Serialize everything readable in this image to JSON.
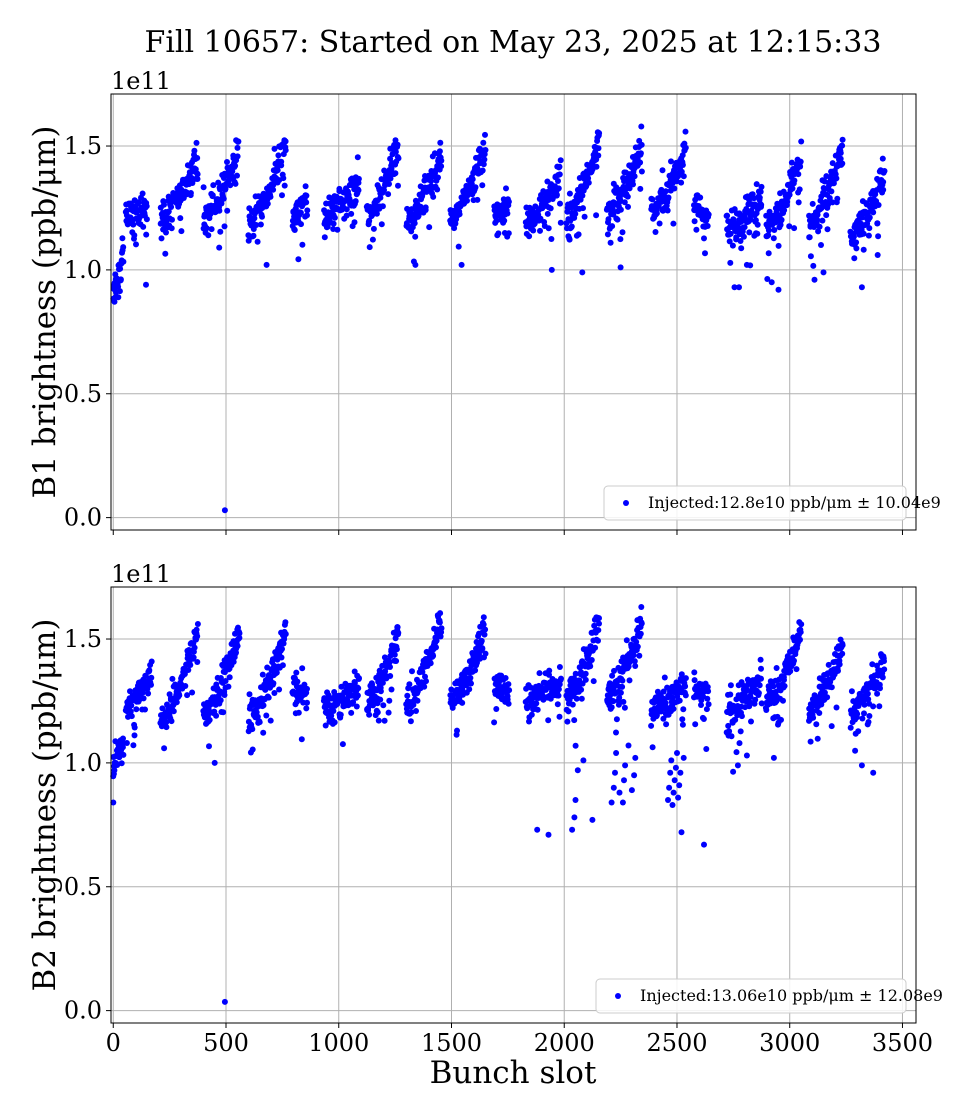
{
  "figure": {
    "title": "Fill 10657: Started on May 23, 2025 at 12:15:33",
    "shared_xlabel": "Bunch slot"
  },
  "colors": {
    "marker": "#0000ff",
    "grid": "#b0b0b0",
    "axes": "#000000",
    "legend_border": "#cccccc"
  },
  "chart_data": [
    {
      "type": "scatter",
      "title": "",
      "xlabel": "Bunch slot",
      "ylabel": "B1 brightness (ppb/μm)",
      "y_sci_multiplier": "1e11",
      "xlim": [
        -10,
        3560
      ],
      "ylim": [
        -0.05,
        1.71
      ],
      "x_ticks": [
        0,
        500,
        1000,
        1500,
        2000,
        2500,
        3000,
        3500
      ],
      "x_tick_labels": [
        "0",
        "500",
        "1000",
        "1500",
        "2000",
        "2500",
        "3000",
        "3500"
      ],
      "x_tick_labels_shown": false,
      "y_ticks": [
        0.0,
        0.5,
        1.0,
        1.5
      ],
      "y_tick_labels": [
        "0.0",
        "0.5",
        "1.0",
        "1.5"
      ],
      "grid": true,
      "legend_position": "lower-right",
      "series": [
        {
          "name": "Injected:12.8e10 ppb/μm ± 10.04e9",
          "marker": "circle",
          "trains": [
            {
              "x": [
                0,
                45
              ],
              "y": [
                0.92,
                1.08
              ]
            },
            {
              "x": [
                55,
                150
              ],
              "y": [
                1.21,
                1.27
              ]
            },
            {
              "x": [
                210,
                375
              ],
              "y": [
                1.2,
                1.46
              ]
            },
            {
              "x": [
                400,
                555
              ],
              "y": [
                1.2,
                1.47
              ]
            },
            {
              "x": [
                600,
                765
              ],
              "y": [
                1.18,
                1.5
              ]
            },
            {
              "x": [
                795,
                860
              ],
              "y": [
                1.21,
                1.26
              ]
            },
            {
              "x": [
                935,
                1090
              ],
              "y": [
                1.22,
                1.35
              ]
            },
            {
              "x": [
                1125,
                1265
              ],
              "y": [
                1.21,
                1.5
              ]
            },
            {
              "x": [
                1300,
                1455
              ],
              "y": [
                1.2,
                1.46
              ]
            },
            {
              "x": [
                1495,
                1650
              ],
              "y": [
                1.19,
                1.5
              ]
            },
            {
              "x": [
                1690,
                1755
              ],
              "y": [
                1.21,
                1.26
              ]
            },
            {
              "x": [
                1830,
                1985
              ],
              "y": [
                1.19,
                1.37
              ]
            },
            {
              "x": [
                2010,
                2155
              ],
              "y": [
                1.21,
                1.5
              ]
            },
            {
              "x": [
                2190,
                2345
              ],
              "y": [
                1.23,
                1.49
              ]
            },
            {
              "x": [
                2385,
                2540
              ],
              "y": [
                1.23,
                1.49
              ]
            },
            {
              "x": [
                2575,
                2640
              ],
              "y": [
                1.25,
                1.2
              ]
            },
            {
              "x": [
                2720,
                2875
              ],
              "y": [
                1.16,
                1.3
              ]
            },
            {
              "x": [
                2895,
                3050
              ],
              "y": [
                1.16,
                1.43
              ]
            },
            {
              "x": [
                3085,
                3235
              ],
              "y": [
                1.18,
                1.5
              ]
            },
            {
              "x": [
                3270,
                3420
              ],
              "y": [
                1.13,
                1.38
              ]
            }
          ],
          "outliers": [
            {
              "x": 10,
              "y": 0.89
            },
            {
              "x": 20,
              "y": 0.95
            },
            {
              "x": 145,
              "y": 0.94
            },
            {
              "x": 495,
              "y": 0.03
            },
            {
              "x": 470,
              "y": 1.09
            },
            {
              "x": 680,
              "y": 1.02
            },
            {
              "x": 1340,
              "y": 1.02
            },
            {
              "x": 1545,
              "y": 1.02
            },
            {
              "x": 1945,
              "y": 1.0
            },
            {
              "x": 2080,
              "y": 0.99
            },
            {
              "x": 2250,
              "y": 1.01
            },
            {
              "x": 2755,
              "y": 0.93
            },
            {
              "x": 2775,
              "y": 0.93
            },
            {
              "x": 2810,
              "y": 1.02
            },
            {
              "x": 2920,
              "y": 0.95
            },
            {
              "x": 2950,
              "y": 0.92
            },
            {
              "x": 3110,
              "y": 0.96
            },
            {
              "x": 3150,
              "y": 0.99
            },
            {
              "x": 3320,
              "y": 0.93
            },
            {
              "x": 3390,
              "y": 1.06
            }
          ]
        }
      ]
    },
    {
      "type": "scatter",
      "title": "",
      "xlabel": "Bunch slot",
      "ylabel": "B2 brightness (ppb/μm)",
      "y_sci_multiplier": "1e11",
      "xlim": [
        -10,
        3560
      ],
      "ylim": [
        -0.05,
        1.71
      ],
      "x_ticks": [
        0,
        500,
        1000,
        1500,
        2000,
        2500,
        3000,
        3500
      ],
      "x_tick_labels": [
        "0",
        "500",
        "1000",
        "1500",
        "2000",
        "2500",
        "3000",
        "3500"
      ],
      "x_tick_labels_shown": true,
      "y_ticks": [
        0.0,
        0.5,
        1.0,
        1.5
      ],
      "y_tick_labels": [
        "0.0",
        "0.5",
        "1.0",
        "1.5"
      ],
      "grid": true,
      "legend_position": "lower-right",
      "series": [
        {
          "name": "Injected:13.06e10 ppb/μm ± 12.08e9",
          "marker": "circle",
          "trains": [
            {
              "x": [
                0,
                45
              ],
              "y": [
                1.0,
                1.1
              ]
            },
            {
              "x": [
                55,
                170
              ],
              "y": [
                1.22,
                1.35
              ]
            },
            {
              "x": [
                210,
                375
              ],
              "y": [
                1.18,
                1.52
              ]
            },
            {
              "x": [
                400,
                560
              ],
              "y": [
                1.2,
                1.52
              ]
            },
            {
              "x": [
                600,
                765
              ],
              "y": [
                1.18,
                1.51
              ]
            },
            {
              "x": [
                795,
                860
              ],
              "y": [
                1.3,
                1.27
              ]
            },
            {
              "x": [
                935,
                1090
              ],
              "y": [
                1.22,
                1.31
              ]
            },
            {
              "x": [
                1125,
                1265
              ],
              "y": [
                1.24,
                1.51
              ]
            },
            {
              "x": [
                1300,
                1455
              ],
              "y": [
                1.23,
                1.56
              ]
            },
            {
              "x": [
                1495,
                1650
              ],
              "y": [
                1.25,
                1.53
              ]
            },
            {
              "x": [
                1690,
                1755
              ],
              "y": [
                1.31,
                1.28
              ]
            },
            {
              "x": [
                1830,
                1985
              ],
              "y": [
                1.26,
                1.33
              ]
            },
            {
              "x": [
                2010,
                2155
              ],
              "y": [
                1.25,
                1.56
              ]
            },
            {
              "x": [
                2190,
                2345
              ],
              "y": [
                1.26,
                1.57
              ]
            },
            {
              "x": [
                2385,
                2540
              ],
              "y": [
                1.22,
                1.31
              ]
            },
            {
              "x": [
                2575,
                2640
              ],
              "y": [
                1.28,
                1.28
              ]
            },
            {
              "x": [
                2720,
                2875
              ],
              "y": [
                1.2,
                1.34
              ]
            },
            {
              "x": [
                2895,
                3050
              ],
              "y": [
                1.23,
                1.52
              ]
            },
            {
              "x": [
                3085,
                3235
              ],
              "y": [
                1.2,
                1.48
              ]
            },
            {
              "x": [
                3270,
                3420
              ],
              "y": [
                1.2,
                1.4
              ]
            }
          ],
          "outliers": [
            {
              "x": 0,
              "y": 0.84
            },
            {
              "x": 5,
              "y": 0.97
            },
            {
              "x": 495,
              "y": 0.035
            },
            {
              "x": 450,
              "y": 1.0
            },
            {
              "x": 1880,
              "y": 0.73
            },
            {
              "x": 1930,
              "y": 0.71
            },
            {
              "x": 2035,
              "y": 0.73
            },
            {
              "x": 2045,
              "y": 0.78
            },
            {
              "x": 2050,
              "y": 0.85
            },
            {
              "x": 2060,
              "y": 0.97
            },
            {
              "x": 2085,
              "y": 1.01
            },
            {
              "x": 2125,
              "y": 0.77
            },
            {
              "x": 2210,
              "y": 0.84
            },
            {
              "x": 2220,
              "y": 0.9
            },
            {
              "x": 2225,
              "y": 0.96
            },
            {
              "x": 2230,
              "y": 1.04
            },
            {
              "x": 2245,
              "y": 0.88
            },
            {
              "x": 2260,
              "y": 0.84
            },
            {
              "x": 2265,
              "y": 0.93
            },
            {
              "x": 2270,
              "y": 0.99
            },
            {
              "x": 2285,
              "y": 1.07
            },
            {
              "x": 2300,
              "y": 0.89
            },
            {
              "x": 2310,
              "y": 0.95
            },
            {
              "x": 2315,
              "y": 1.02
            },
            {
              "x": 2460,
              "y": 0.85
            },
            {
              "x": 2465,
              "y": 0.9
            },
            {
              "x": 2470,
              "y": 0.96
            },
            {
              "x": 2475,
              "y": 1.01
            },
            {
              "x": 2480,
              "y": 0.83
            },
            {
              "x": 2485,
              "y": 0.88
            },
            {
              "x": 2490,
              "y": 0.93
            },
            {
              "x": 2495,
              "y": 0.98
            },
            {
              "x": 2500,
              "y": 1.04
            },
            {
              "x": 2505,
              "y": 0.86
            },
            {
              "x": 2510,
              "y": 0.91
            },
            {
              "x": 2515,
              "y": 0.96
            },
            {
              "x": 2520,
              "y": 0.72
            },
            {
              "x": 2530,
              "y": 1.02
            },
            {
              "x": 2620,
              "y": 0.67
            },
            {
              "x": 2770,
              "y": 0.99
            },
            {
              "x": 2810,
              "y": 1.03
            },
            {
              "x": 2930,
              "y": 1.02
            },
            {
              "x": 3370,
              "y": 0.96
            },
            {
              "x": 3320,
              "y": 0.99
            }
          ]
        }
      ]
    }
  ]
}
